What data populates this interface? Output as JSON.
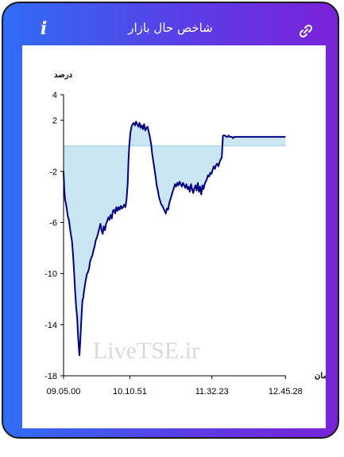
{
  "header": {
    "title": "شاخص حال بازار",
    "info_icon": "info-icon",
    "link_icon": "link-icon"
  },
  "watermark": "LiveTSE.ir",
  "colors": {
    "header_gradient_start": "#2f6df5",
    "header_gradient_end": "#7a22d8",
    "line": "#000080",
    "fill": "#c9e6f2",
    "baseline": "#9ecbe0"
  },
  "chart_data": {
    "type": "area",
    "ylabel": "درصد",
    "xlabel": "زمان",
    "ylim": [
      -18,
      4
    ],
    "yticks": [
      "4",
      "2",
      "-2",
      "-6",
      "-10",
      "-14",
      "-18"
    ],
    "ytick_values": [
      4,
      2,
      -2,
      -6,
      -10,
      -14,
      -18
    ],
    "xticks": [
      "09.05.00",
      "10.10.51",
      "11.32.23",
      "12.45.28"
    ],
    "xtick_minutes": [
      0,
      65.85,
      147.38,
      220.47
    ],
    "xlim_minutes": [
      0,
      221
    ],
    "baseline": 0,
    "series": [
      {
        "x": [
          0,
          0.7,
          1.5,
          2.5,
          3.3,
          4.2,
          5.3,
          6.3,
          7.2,
          8.3,
          9.3,
          10.4,
          11.4,
          12.5,
          13.5,
          14.2,
          15.0,
          15.8,
          16.6,
          17.3,
          18.1,
          18.8,
          19.6,
          20.3,
          21.1,
          21.9,
          22.6,
          23.4,
          24.2,
          25.3,
          26.3,
          27.4,
          28.6,
          29.7,
          30.8,
          32.0,
          33.1,
          34.2,
          35.4,
          36.6,
          37.7,
          38.8,
          39.9,
          41.1,
          42.2,
          43.3,
          44.5,
          45.6,
          46.7,
          47.9,
          49.0,
          50.1,
          51.3,
          52.4,
          53.5,
          54.7,
          55.8,
          56.9,
          58.1,
          59.2,
          60.3,
          61.5,
          62.6,
          63.7,
          64.5,
          65.3,
          66.4,
          67.5,
          68.7,
          69.8,
          71.0,
          72.1,
          73.2,
          74.4,
          75.5,
          76.6,
          77.8,
          78.9,
          80.0,
          81.2,
          82.3,
          83.4,
          84.6,
          85.7,
          86.9,
          88.0,
          89.1,
          90.3,
          91.4,
          92.5,
          93.7,
          94.8,
          95.9,
          97.1,
          98.2,
          99.3,
          100.5,
          101.6,
          102.7,
          103.9,
          105.0,
          106.1,
          107.3,
          108.4,
          109.6,
          110.7,
          111.8,
          113.0,
          114.1,
          115.2,
          116.4,
          117.5,
          118.6,
          119.8,
          120.9,
          122.0,
          123.2,
          124.3,
          125.4,
          126.6,
          127.7,
          128.8,
          130.0,
          131.1,
          132.2,
          133.4,
          134.5,
          135.6,
          136.8,
          137.9,
          139.0,
          140.2,
          141.3,
          142.4,
          143.6,
          144.7,
          145.8,
          147.0,
          148.1,
          149.2,
          150.4,
          151.5,
          152.6,
          153.8,
          154.9,
          156.0,
          157.2,
          158.3,
          159.5,
          160.6,
          161.7,
          162.9,
          164.0,
          165.1,
          166.3,
          167.4,
          168.5,
          169.7,
          170.8,
          171.9,
          173.1,
          174.2,
          175.3,
          176.5,
          177.6,
          178.7,
          179.9,
          181.0,
          182.1,
          183.3,
          184.4,
          185.5,
          186.7,
          187.8,
          188.9,
          190.1,
          191.2,
          192.3,
          193.5,
          194.6,
          195.7,
          196.9,
          198.0,
          199.1,
          200.3,
          201.4,
          202.5,
          203.7,
          204.8,
          205.9,
          207.1,
          208.2,
          209.3,
          210.5,
          211.6,
          212.7,
          213.9,
          215.0,
          216.1,
          217.3,
          218.4,
          219.5,
          220.5
        ],
        "y": [
          -2.0,
          -3.4,
          -4.2,
          -4.6,
          -5.0,
          -5.5,
          -5.8,
          -6.4,
          -6.9,
          -7.4,
          -8.4,
          -9.8,
          -11.2,
          -12.6,
          -13.4,
          -14.6,
          -15.6,
          -16.4,
          -15.3,
          -14.2,
          -13.0,
          -12.1,
          -11.9,
          -11.4,
          -11.0,
          -10.6,
          -10.3,
          -10.0,
          -9.9,
          -9.6,
          -9.1,
          -8.8,
          -8.6,
          -8.2,
          -7.9,
          -7.4,
          -7.2,
          -6.9,
          -6.5,
          -6.1,
          -6.6,
          -6.9,
          -6.3,
          -6.6,
          -6.1,
          -5.9,
          -5.6,
          -5.8,
          -5.4,
          -5.7,
          -5.1,
          -5.0,
          -5.3,
          -4.8,
          -5.1,
          -4.8,
          -5.0,
          -4.7,
          -4.9,
          -4.8,
          -4.6,
          -4.8,
          -4.2,
          -3.0,
          -1.2,
          0.0,
          1.0,
          1.5,
          1.7,
          1.8,
          1.6,
          1.9,
          1.7,
          1.5,
          1.8,
          1.4,
          1.6,
          1.3,
          1.7,
          1.2,
          1.4,
          1.5,
          1.1,
          0.7,
          0.2,
          -0.6,
          -1.2,
          -1.8,
          -2.4,
          -3.1,
          -3.5,
          -4.0,
          -4.3,
          -4.6,
          -4.7,
          -4.9,
          -5.1,
          -5.3,
          -4.9,
          -5.0,
          -4.5,
          -4.2,
          -3.9,
          -3.6,
          -3.3,
          -3.0,
          -3.2,
          -2.9,
          -3.1,
          -2.8,
          -3.0,
          -3.2,
          -2.9,
          -3.1,
          -3.3,
          -3.0,
          -3.4,
          -3.2,
          -3.6,
          -3.0,
          -3.4,
          -3.7,
          -3.3,
          -3.1,
          -3.5,
          -2.9,
          -3.6,
          -3.2,
          -3.8,
          -3.1,
          -3.4,
          -3.0,
          -2.8,
          -2.6,
          -2.3,
          -2.4,
          -2.1,
          -2.2,
          -1.9,
          -1.6,
          -1.8,
          -1.5,
          -1.4,
          -1.6,
          -1.3,
          -1.1,
          -0.9,
          0.8,
          0.8,
          0.8,
          0.7,
          0.7,
          0.8,
          0.7,
          0.7,
          0.7,
          0.6,
          0.7,
          0.7,
          0.7,
          0.7,
          0.7,
          0.7,
          0.7,
          0.7,
          0.7,
          0.7,
          0.7,
          0.7,
          0.7,
          0.7,
          0.7,
          0.7,
          0.7,
          0.7,
          0.7,
          0.7,
          0.7,
          0.7,
          0.7,
          0.7,
          0.7,
          0.7,
          0.7,
          0.7,
          0.7,
          0.7,
          0.7,
          0.7,
          0.7,
          0.7,
          0.7,
          0.7,
          0.7,
          0.7,
          0.7,
          0.7,
          0.7,
          0.7,
          0.7,
          0.7,
          0.7,
          0.7
        ]
      }
    ]
  }
}
